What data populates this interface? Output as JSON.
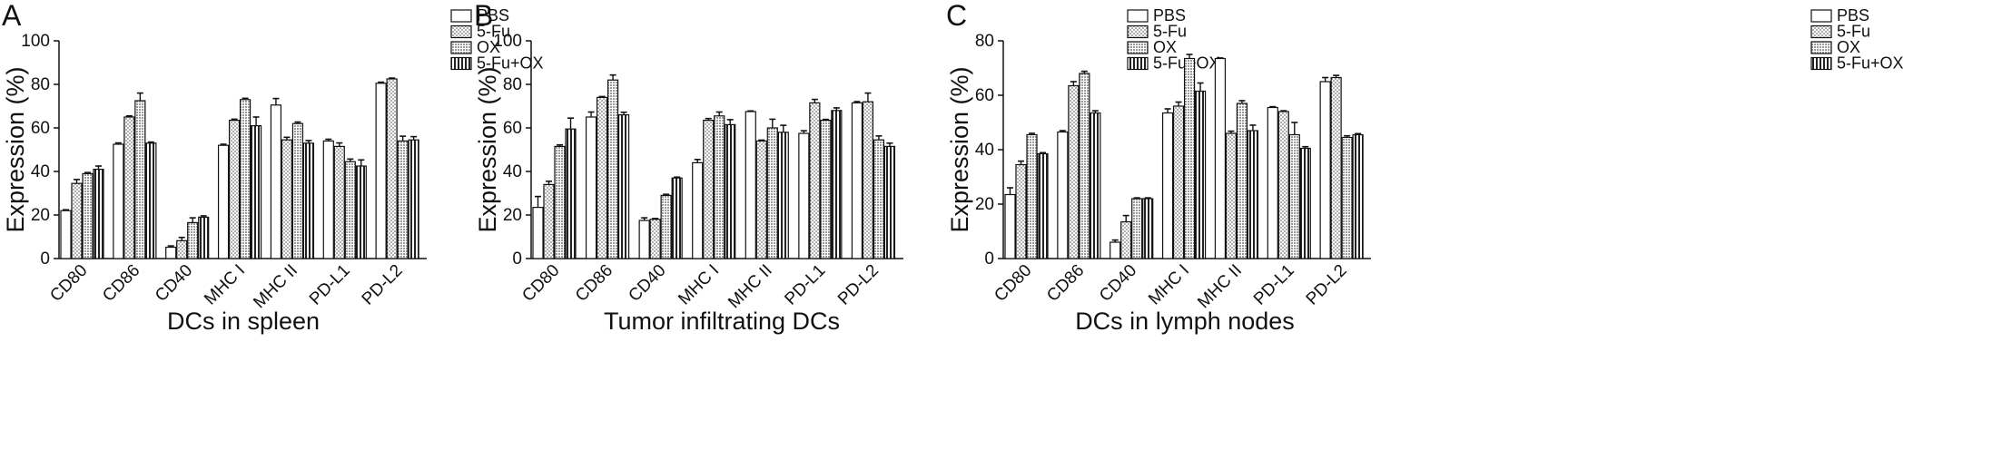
{
  "figure": {
    "legend": [
      "PBS",
      "5-Fu",
      "OX",
      "5-Fu+OX"
    ],
    "patterns": [
      "blank-fill",
      "dots-fill",
      "grid-fill",
      "vertical-lines-fill"
    ],
    "colors": {
      "ink": "#111111",
      "background": "#ffffff"
    }
  },
  "chart_data": [
    {
      "panel": "A",
      "type": "bar",
      "xlabel": "DCs in spleen",
      "ylabel": "Expression (%)",
      "ylim": [
        0,
        100
      ],
      "yticks": [
        0,
        20,
        40,
        60,
        80,
        100
      ],
      "categories": [
        "CD80",
        "CD86",
        "CD40",
        "MHC I",
        "MHC II",
        "PD-L1",
        "PD-L2"
      ],
      "series": [
        {
          "name": "PBS",
          "values": [
            22,
            52.5,
            5.2,
            52,
            70.5,
            54,
            80.5
          ],
          "errors": [
            0.4,
            0.6,
            0.6,
            0.5,
            3.0,
            0.8,
            0.5
          ]
        },
        {
          "name": "5-Fu",
          "values": [
            34.5,
            65,
            8.2,
            63.5,
            54.5,
            51.5,
            82.5
          ],
          "errors": [
            1.8,
            0.5,
            1.5,
            0.5,
            1.2,
            1.6,
            0.4
          ]
        },
        {
          "name": "OX",
          "values": [
            39,
            72.5,
            16.5,
            73,
            62,
            44.5,
            54
          ],
          "errors": [
            0.5,
            3.5,
            2.2,
            0.6,
            0.7,
            1.2,
            2.2
          ]
        },
        {
          "name": "5-Fu+OX",
          "values": [
            41,
            53,
            19,
            61,
            53,
            42.5,
            54.5
          ],
          "errors": [
            1.5,
            0.5,
            0.6,
            4.0,
            1.2,
            2.8,
            1.5
          ]
        }
      ]
    },
    {
      "panel": "B",
      "type": "bar",
      "xlabel": "Tumor infiltrating DCs",
      "ylabel": "Expression (%)",
      "ylim": [
        0,
        100
      ],
      "yticks": [
        0,
        20,
        40,
        60,
        80,
        100
      ],
      "categories": [
        "CD80",
        "CD86",
        "CD40",
        "MHC I",
        "MHC II",
        "PD-L1",
        "PD-L2"
      ],
      "series": [
        {
          "name": "PBS",
          "values": [
            23.5,
            65,
            17.5,
            44,
            67.5,
            57.5,
            71.5
          ],
          "errors": [
            5.0,
            2.3,
            1.2,
            1.5,
            0.3,
            1.2,
            0.6
          ]
        },
        {
          "name": "5-Fu",
          "values": [
            34,
            74,
            18,
            63.5,
            54,
            71.5,
            72
          ],
          "errors": [
            1.5,
            0.4,
            0.4,
            0.8,
            0.4,
            1.6,
            4.0
          ]
        },
        {
          "name": "OX",
          "values": [
            51.5,
            82,
            29,
            65.5,
            60,
            63.5,
            54.5
          ],
          "errors": [
            0.7,
            2.3,
            0.5,
            1.8,
            4.0,
            0.4,
            1.8
          ]
        },
        {
          "name": "5-Fu+OX",
          "values": [
            59.5,
            66,
            37,
            61.5,
            58,
            68,
            51.5
          ],
          "errors": [
            5.0,
            1.2,
            0.4,
            2.3,
            3.2,
            1.2,
            1.5
          ]
        }
      ]
    },
    {
      "panel": "C",
      "type": "bar",
      "xlabel": "DCs in lymph nodes",
      "ylabel": "Expression (%)",
      "ylim": [
        0,
        80
      ],
      "yticks": [
        0,
        20,
        40,
        60,
        80
      ],
      "categories": [
        "CD80",
        "CD86",
        "CD40",
        "MHC I",
        "MHC II",
        "PD-L1",
        "PD-L2"
      ],
      "series": [
        {
          "name": "PBS",
          "values": [
            23.5,
            46.5,
            6,
            53.5,
            73.5,
            55.5,
            65
          ],
          "errors": [
            2.5,
            0.5,
            0.8,
            1.5,
            0.2,
            0.3,
            1.5
          ]
        },
        {
          "name": "5-Fu",
          "values": [
            34.5,
            63.5,
            13.5,
            56,
            46,
            54,
            66.5
          ],
          "errors": [
            1.3,
            1.5,
            2.3,
            1.5,
            0.8,
            0.3,
            0.8
          ]
        },
        {
          "name": "OX",
          "values": [
            45.5,
            68,
            22,
            73.5,
            57,
            45.5,
            44.5
          ],
          "errors": [
            0.5,
            0.8,
            0.3,
            1.5,
            1.0,
            4.5,
            0.6
          ]
        },
        {
          "name": "5-Fu+OX",
          "values": [
            38.5,
            53.5,
            22,
            61.5,
            47,
            40.5,
            45.5
          ],
          "errors": [
            0.4,
            0.8,
            0.3,
            3.0,
            2.0,
            0.6,
            0.4
          ]
        }
      ]
    }
  ]
}
